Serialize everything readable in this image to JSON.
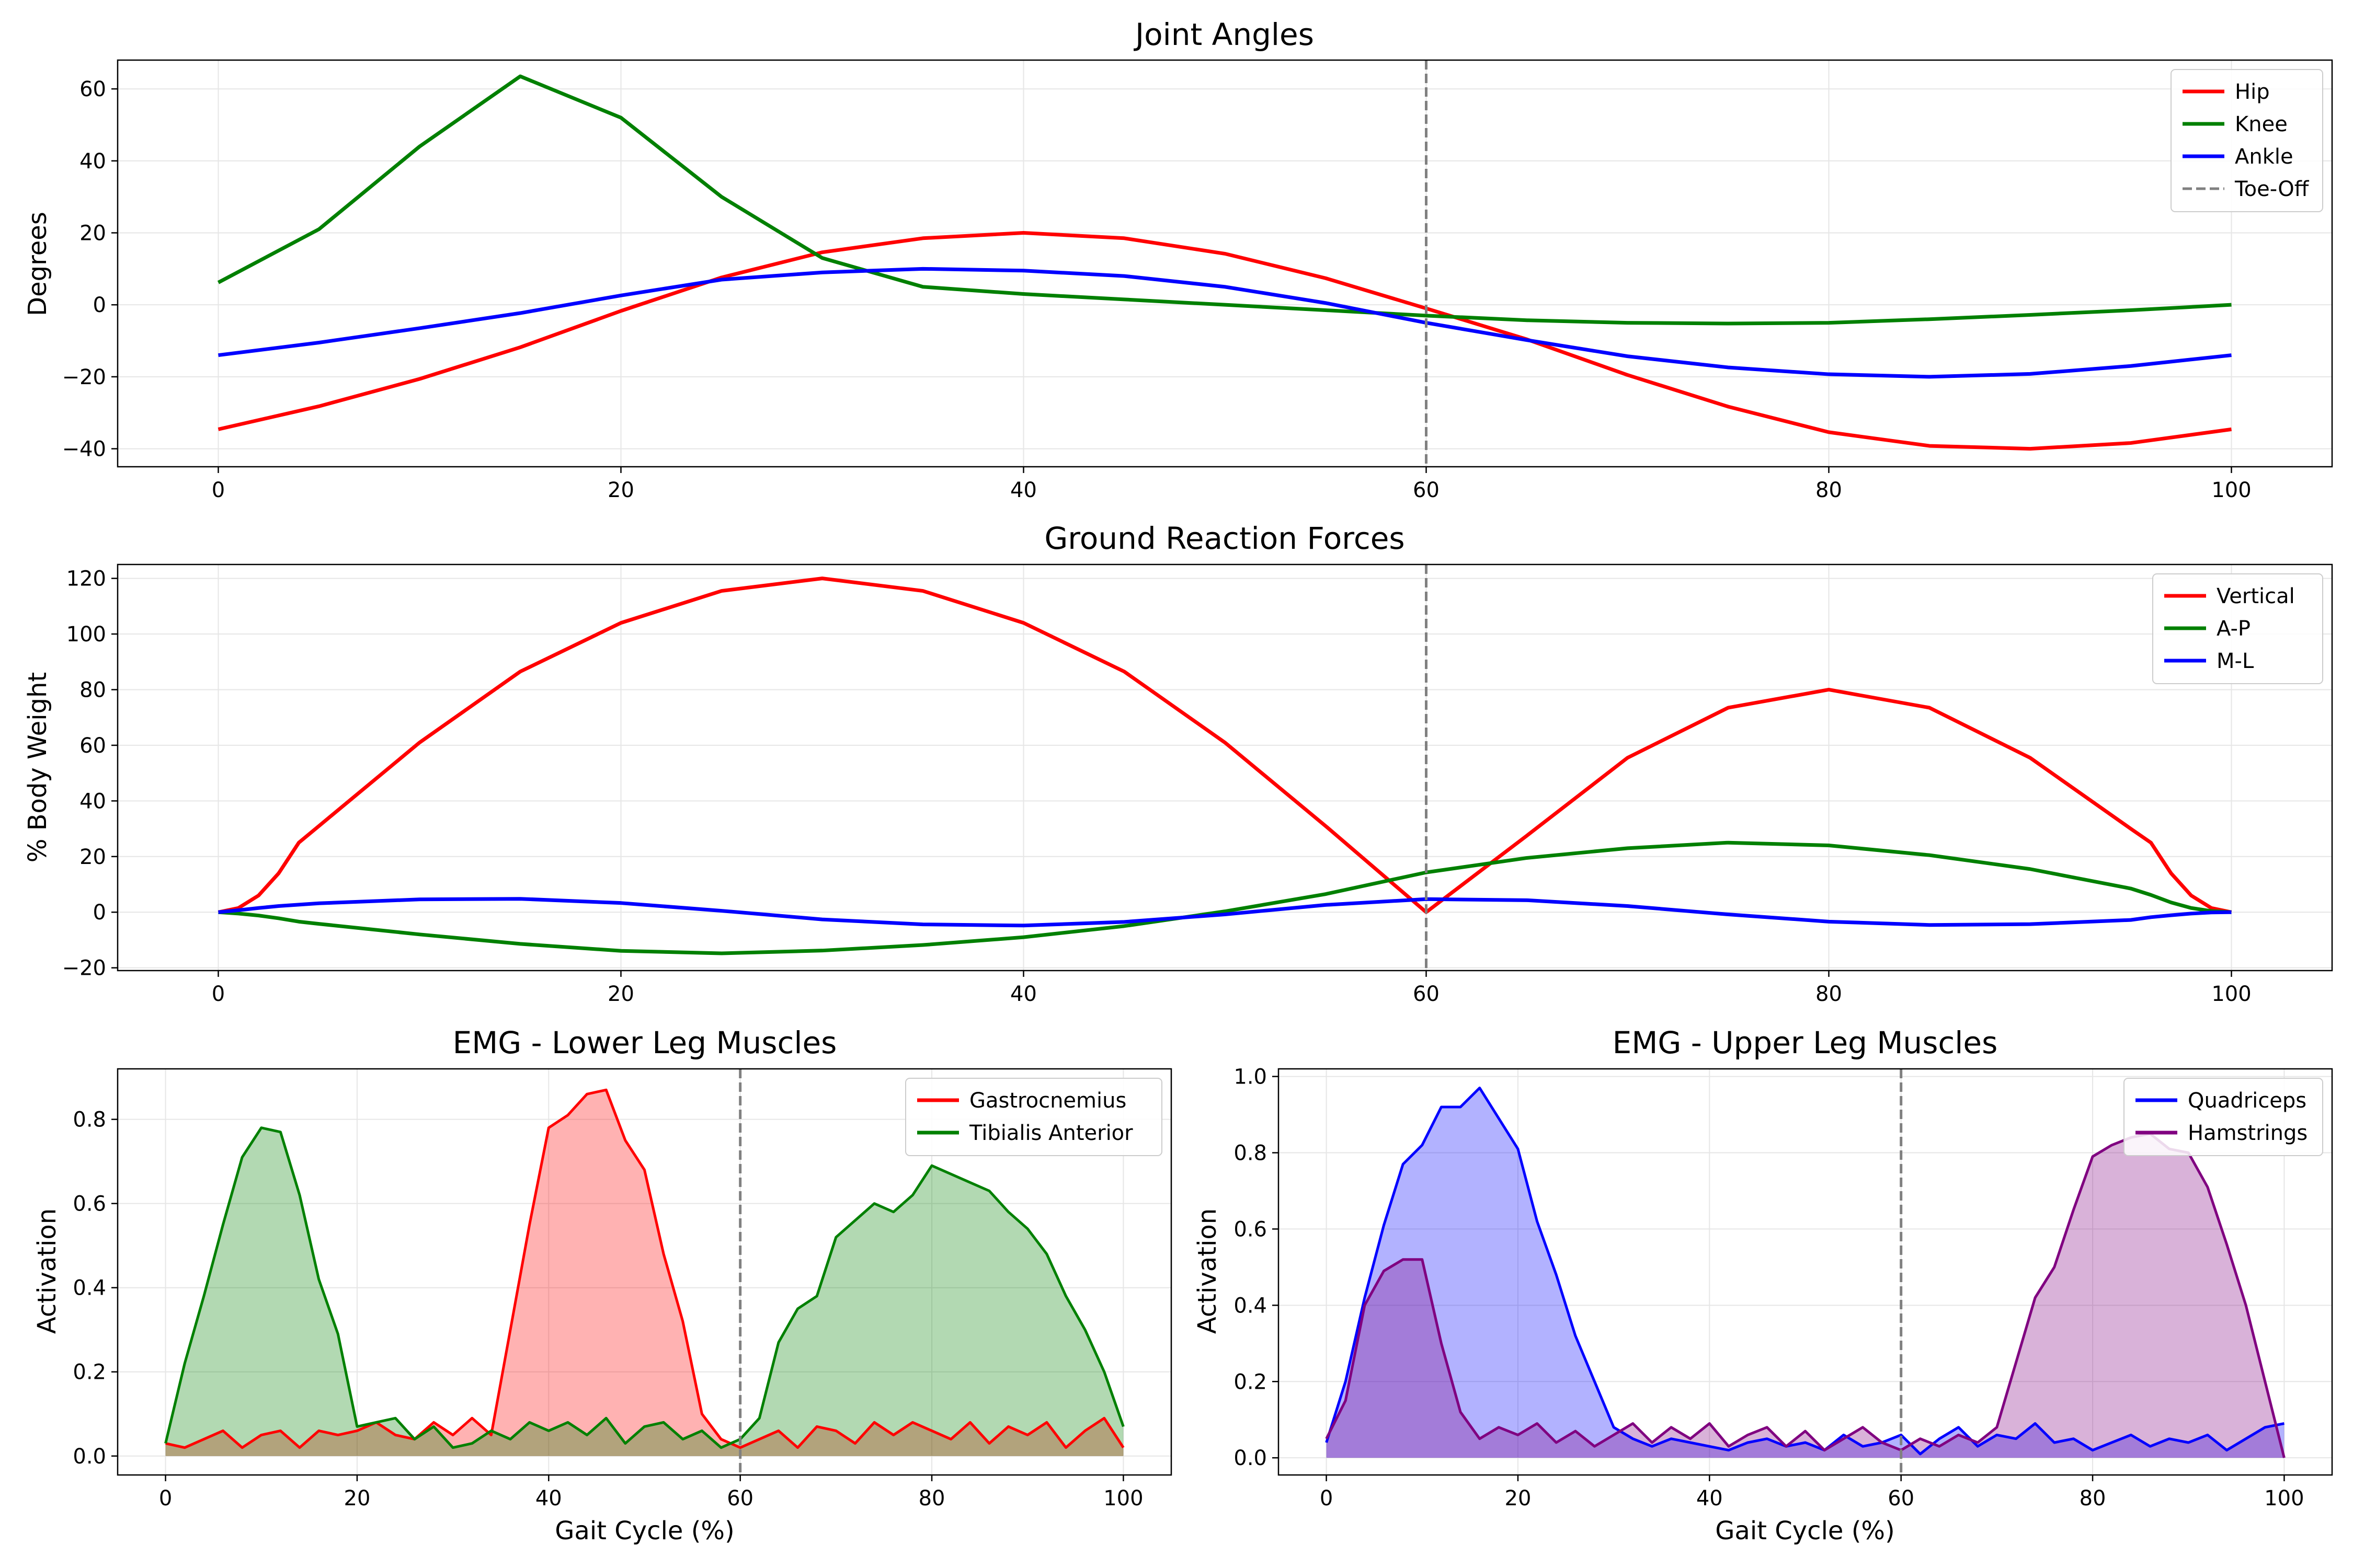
{
  "colors": {
    "hip": "#ff0000",
    "knee": "#008000",
    "ankle": "#0000ff",
    "toe_off": "#808080",
    "gastrocnemius": "#ff0000",
    "tibialis": "#008000",
    "quadriceps": "#0000ff",
    "hamstrings": "#800080",
    "grid": "#e6e6e6"
  },
  "chart_data": [
    {
      "type": "line",
      "title": "Joint Angles",
      "xlabel": "",
      "ylabel": "Degrees",
      "xlim": [
        -5,
        105
      ],
      "ylim": [
        -45,
        68
      ],
      "xticks": [
        0,
        20,
        40,
        60,
        80,
        100
      ],
      "xtick_labels": [
        "0",
        "20",
        "40",
        "60",
        "80",
        "100"
      ],
      "yticks": [
        -40,
        -20,
        0,
        20,
        40,
        60
      ],
      "ytick_labels": [
        "−40",
        "−20",
        "0",
        "20",
        "40",
        "60"
      ],
      "grid": true,
      "legend_position": "top-right",
      "toe_off": {
        "x": 60,
        "label": "Toe-Off"
      },
      "x": [
        0,
        5,
        10,
        15,
        20,
        25,
        30,
        35,
        40,
        45,
        50,
        55,
        60,
        65,
        70,
        75,
        80,
        85,
        90,
        95,
        100
      ],
      "series": [
        {
          "name": "Hip",
          "color_key": "hip",
          "values": [
            -34.6,
            -28.2,
            -20.6,
            -11.8,
            -1.7,
            7.6,
            14.6,
            18.5,
            20,
            18.5,
            14.2,
            7.4,
            -1,
            -9.6,
            -19.5,
            -28.3,
            -35.4,
            -39.2,
            -40,
            -38.4,
            -34.6
          ]
        },
        {
          "name": "Knee",
          "color_key": "knee",
          "values": [
            6.2,
            21,
            44,
            63.5,
            52,
            30,
            13,
            5,
            3,
            1.5,
            0,
            -1.5,
            -3,
            -4.3,
            -5,
            -5.2,
            -5,
            -4,
            -2.8,
            -1.5,
            0
          ]
        },
        {
          "name": "Ankle",
          "color_key": "ankle",
          "values": [
            -14,
            -10.5,
            -6.5,
            -2.3,
            2.6,
            7,
            9,
            10,
            9.5,
            8,
            5,
            0.5,
            -5,
            -9.8,
            -14.3,
            -17.4,
            -19.3,
            -20,
            -19.2,
            -17,
            -14
          ]
        }
      ]
    },
    {
      "type": "line",
      "title": "Ground Reaction Forces",
      "xlabel": "",
      "ylabel": "% Body Weight",
      "xlim": [
        -5,
        105
      ],
      "ylim": [
        -21,
        125
      ],
      "xticks": [
        0,
        20,
        40,
        60,
        80,
        100
      ],
      "xtick_labels": [
        "0",
        "20",
        "40",
        "60",
        "80",
        "100"
      ],
      "yticks": [
        -20,
        0,
        20,
        40,
        60,
        80,
        100,
        120
      ],
      "ytick_labels": [
        "−20",
        "0",
        "20",
        "40",
        "60",
        "80",
        "100",
        "120"
      ],
      "grid": true,
      "legend_position": "top-right",
      "toe_off": {
        "x": 60
      },
      "x": [
        0,
        1,
        2,
        3,
        4,
        5,
        10,
        15,
        20,
        25,
        30,
        35,
        40,
        45,
        50,
        55,
        60,
        65,
        70,
        75,
        80,
        85,
        90,
        95,
        96,
        97,
        98,
        99,
        100
      ],
      "series": [
        {
          "name": "Vertical",
          "color_key": "hip",
          "values": [
            0,
            1.5,
            6,
            14,
            25,
            31,
            61,
            86.5,
            104,
            115.5,
            120,
            115.5,
            104,
            86.5,
            61,
            31,
            0,
            27.5,
            55.5,
            73.5,
            80,
            73.5,
            55.5,
            30,
            25,
            14,
            6,
            1.5,
            0
          ]
        },
        {
          "name": "A-P",
          "color_key": "knee",
          "values": [
            0,
            -0.5,
            -1.2,
            -2.2,
            -3.4,
            -4.2,
            -8,
            -11.4,
            -13.9,
            -14.8,
            -13.8,
            -11.8,
            -9,
            -5,
            0.3,
            6.5,
            14.3,
            19.5,
            23,
            25,
            24,
            20.5,
            15.5,
            8.5,
            6.2,
            3.5,
            1.5,
            0.4,
            0
          ]
        },
        {
          "name": "M-L",
          "color_key": "ankle",
          "values": [
            0,
            0.7,
            1.5,
            2.2,
            2.7,
            3.2,
            4.6,
            4.8,
            3.3,
            0.5,
            -2.6,
            -4.4,
            -4.8,
            -3.5,
            -0.8,
            2.6,
            4.7,
            4.3,
            2.2,
            -0.8,
            -3.4,
            -4.6,
            -4.3,
            -2.8,
            -1.8,
            -1.1,
            -0.5,
            -0.1,
            0
          ]
        }
      ]
    },
    {
      "type": "area",
      "title": "EMG - Lower Leg Muscles",
      "xlabel": "Gait Cycle (%)",
      "ylabel": "Activation",
      "xlim": [
        -5,
        105
      ],
      "ylim": [
        -0.045,
        0.92
      ],
      "xticks": [
        0,
        20,
        40,
        60,
        80,
        100
      ],
      "xtick_labels": [
        "0",
        "20",
        "40",
        "60",
        "80",
        "100"
      ],
      "yticks": [
        0,
        0.2,
        0.4,
        0.6,
        0.8
      ],
      "ytick_labels": [
        "0.0",
        "0.2",
        "0.4",
        "0.6",
        "0.8"
      ],
      "grid": true,
      "legend_position": "top-right",
      "toe_off": {
        "x": 60
      },
      "x": [
        0,
        2,
        4,
        6,
        8,
        10,
        12,
        14,
        16,
        18,
        20,
        22,
        24,
        26,
        28,
        30,
        32,
        34,
        36,
        38,
        40,
        42,
        44,
        46,
        48,
        50,
        52,
        54,
        56,
        58,
        60,
        62,
        64,
        66,
        68,
        70,
        72,
        74,
        76,
        78,
        80,
        82,
        84,
        86,
        88,
        90,
        92,
        94,
        96,
        98,
        100
      ],
      "series": [
        {
          "name": "Gastrocnemius",
          "color_key": "gastrocnemius",
          "values": [
            0.03,
            0.02,
            0.04,
            0.06,
            0.02,
            0.05,
            0.06,
            0.02,
            0.06,
            0.05,
            0.06,
            0.08,
            0.05,
            0.04,
            0.08,
            0.05,
            0.09,
            0.05,
            0.3,
            0.55,
            0.78,
            0.81,
            0.86,
            0.87,
            0.75,
            0.68,
            0.48,
            0.32,
            0.1,
            0.04,
            0.02,
            0.04,
            0.06,
            0.02,
            0.07,
            0.06,
            0.03,
            0.08,
            0.05,
            0.08,
            0.06,
            0.04,
            0.08,
            0.03,
            0.07,
            0.05,
            0.08,
            0.02,
            0.06,
            0.09,
            0.02
          ]
        },
        {
          "name": "Tibialis Anterior",
          "color_key": "tibialis",
          "values": [
            0.03,
            0.22,
            0.38,
            0.55,
            0.71,
            0.78,
            0.77,
            0.62,
            0.42,
            0.29,
            0.07,
            0.08,
            0.09,
            0.04,
            0.07,
            0.02,
            0.03,
            0.06,
            0.04,
            0.08,
            0.06,
            0.08,
            0.05,
            0.09,
            0.03,
            0.07,
            0.08,
            0.04,
            0.06,
            0.02,
            0.04,
            0.09,
            0.27,
            0.35,
            0.38,
            0.52,
            0.56,
            0.6,
            0.58,
            0.62,
            0.69,
            0.67,
            0.65,
            0.63,
            0.58,
            0.54,
            0.48,
            0.38,
            0.3,
            0.2,
            0.07
          ]
        }
      ]
    },
    {
      "type": "area",
      "title": "EMG - Upper Leg Muscles",
      "xlabel": "Gait Cycle (%)",
      "ylabel": "Activation",
      "xlim": [
        -5,
        105
      ],
      "ylim": [
        -0.045,
        1.02
      ],
      "xticks": [
        0,
        20,
        40,
        60,
        80,
        100
      ],
      "xtick_labels": [
        "0",
        "20",
        "40",
        "60",
        "80",
        "100"
      ],
      "yticks": [
        0,
        0.2,
        0.4,
        0.6,
        0.8,
        1.0
      ],
      "ytick_labels": [
        "0.0",
        "0.2",
        "0.4",
        "0.6",
        "0.8",
        "1.0"
      ],
      "grid": true,
      "legend_position": "top-right",
      "toe_off": {
        "x": 60
      },
      "x": [
        0,
        2,
        4,
        6,
        8,
        10,
        12,
        14,
        16,
        18,
        20,
        22,
        24,
        26,
        28,
        30,
        32,
        34,
        36,
        38,
        40,
        42,
        44,
        46,
        48,
        50,
        52,
        54,
        56,
        58,
        60,
        62,
        64,
        66,
        68,
        70,
        72,
        74,
        76,
        78,
        80,
        82,
        84,
        86,
        88,
        90,
        92,
        94,
        96,
        98,
        100
      ],
      "series": [
        {
          "name": "Quadriceps",
          "color_key": "quadriceps",
          "values": [
            0.04,
            0.2,
            0.42,
            0.61,
            0.77,
            0.82,
            0.92,
            0.92,
            0.97,
            0.89,
            0.81,
            0.62,
            0.48,
            0.32,
            0.2,
            0.08,
            0.05,
            0.03,
            0.05,
            0.04,
            0.03,
            0.02,
            0.04,
            0.05,
            0.03,
            0.04,
            0.02,
            0.06,
            0.03,
            0.04,
            0.06,
            0.01,
            0.05,
            0.08,
            0.03,
            0.06,
            0.05,
            0.09,
            0.04,
            0.05,
            0.02,
            0.04,
            0.06,
            0.03,
            0.05,
            0.04,
            0.06,
            0.02,
            0.05,
            0.08,
            0.09
          ]
        },
        {
          "name": "Hamstrings",
          "color_key": "hamstrings",
          "values": [
            0.05,
            0.15,
            0.4,
            0.49,
            0.52,
            0.52,
            0.3,
            0.12,
            0.05,
            0.08,
            0.06,
            0.09,
            0.04,
            0.07,
            0.03,
            0.06,
            0.09,
            0.04,
            0.08,
            0.05,
            0.09,
            0.03,
            0.06,
            0.08,
            0.03,
            0.07,
            0.02,
            0.05,
            0.08,
            0.04,
            0.02,
            0.05,
            0.03,
            0.06,
            0.04,
            0.08,
            0.25,
            0.42,
            0.5,
            0.65,
            0.79,
            0.82,
            0.84,
            0.85,
            0.81,
            0.8,
            0.71,
            0.56,
            0.4,
            0.2,
            0.0
          ]
        }
      ]
    }
  ]
}
